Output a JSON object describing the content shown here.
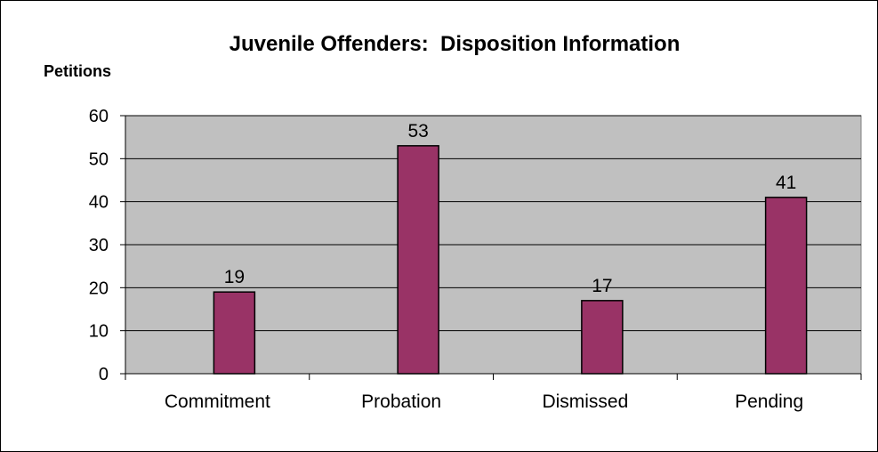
{
  "chart_data": {
    "type": "bar",
    "title": "Juvenile Offenders:  Disposition Information",
    "ylabel": "Petitions",
    "xlabel": "",
    "categories": [
      "Commitment",
      "Probation",
      "Dismissed",
      "Pending"
    ],
    "values": [
      19,
      53,
      17,
      41
    ],
    "data_labels": [
      "19",
      "53",
      "17",
      "41"
    ],
    "ylim": [
      0,
      60
    ],
    "yticks": [
      "0",
      "10",
      "20",
      "30",
      "40",
      "50",
      "60"
    ],
    "grid": true,
    "legend": "none",
    "colors": {
      "bar": "#993366",
      "plot_area": "#c0c0c0",
      "gridline": "#000000"
    }
  }
}
